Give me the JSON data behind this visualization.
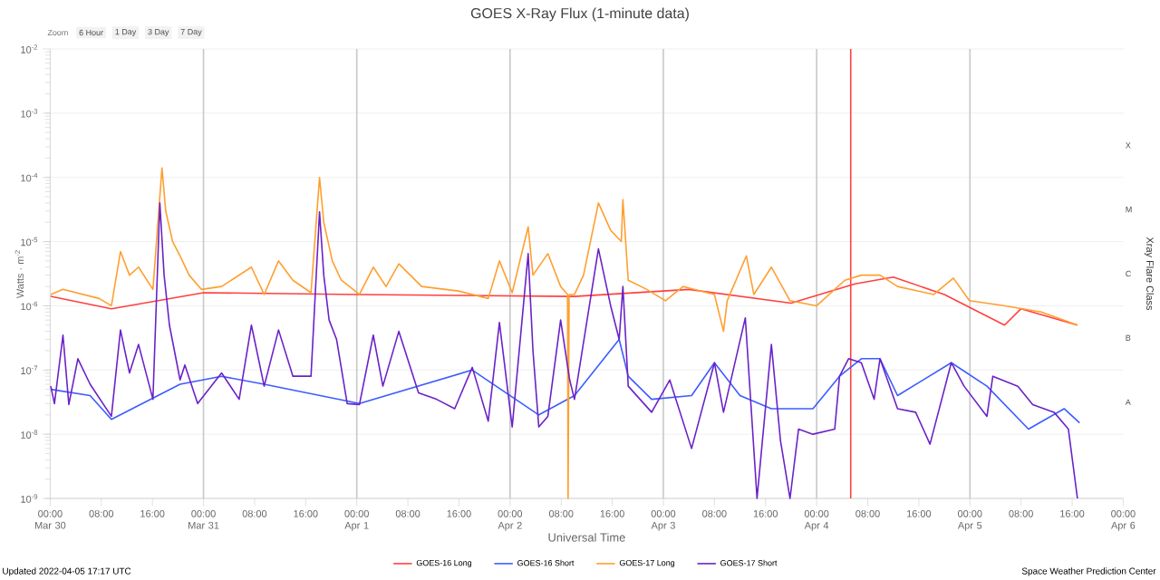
{
  "chart_data": {
    "type": "line",
    "title": "GOES X-Ray Flux (1-minute data)",
    "xlabel": "Universal Time",
    "ylabel": "Watts · m$^{-2}$",
    "y2label": "Xray Flare Class",
    "annotations": [
      "A",
      "B",
      "C",
      "M",
      "X",
      "Zoom",
      "6 Hour",
      "1 Day",
      "3 Day",
      "7 Day",
      "Updated 2022-04-05 17:17 UTC",
      "Space Weather Prediction Center"
    ],
    "log": "y",
    "grid": "y",
    "legend": "bottom",
    "marker": "none",
    "line_style": "solid",
    "xlim": [
      "2022-03-30T00:00",
      "2022-04-06T00:00"
    ],
    "xticks": [
      {
        "value": "2022-03-30T00:00",
        "label": "00:00 Mar 30"
      },
      {
        "value": "2022-03-30T08:00",
        "label": "08:00"
      },
      {
        "value": "2022-03-30T16:00",
        "label": "16:00"
      },
      {
        "value": "2022-03-31T00:00",
        "label": "00:00 Mar 31"
      },
      {
        "value": "2022-03-31T08:00",
        "label": "08:00"
      },
      {
        "value": "2022-03-31T16:00",
        "label": "16:00"
      },
      {
        "value": "2022-04-01T00:00",
        "label": "00:00 Apr 1"
      },
      {
        "value": "2022-04-01T08:00",
        "label": "08:00"
      },
      {
        "value": "2022-04-01T16:00",
        "label": "16:00"
      },
      {
        "value": "2022-04-02T00:00",
        "label": "00:00 Apr 2"
      },
      {
        "value": "2022-04-02T08:00",
        "label": "08:00"
      },
      {
        "value": "2022-04-02T16:00",
        "label": "16:00"
      },
      {
        "value": "2022-04-03T00:00",
        "label": "00:00 Apr 3"
      },
      {
        "value": "2022-04-03T08:00",
        "label": "08:00"
      },
      {
        "value": "2022-04-03T16:00",
        "label": "16:00"
      },
      {
        "value": "2022-04-04T00:00",
        "label": "00:00 Apr 4"
      },
      {
        "value": "2022-04-04T08:00",
        "label": "08:00"
      },
      {
        "value": "2022-04-04T16:00",
        "label": "16:00"
      },
      {
        "value": "2022-04-05T00:00",
        "label": "00:00 Apr 5"
      },
      {
        "value": "2022-04-05T08:00",
        "label": "08:00"
      },
      {
        "value": "2022-04-05T16:00",
        "label": "16:00"
      },
      {
        "value": "2022-04-06T00:00",
        "label": "00:00 Apr 6"
      }
    ],
    "ylim": [
      1e-09,
      0.01
    ],
    "yticks": [
      {
        "value": 1e-09,
        "label": "10$^{-9}$"
      },
      {
        "value": 1e-08,
        "label": "10$^{-8}$"
      },
      {
        "value": 1e-07,
        "label": "10$^{-7}$"
      },
      {
        "value": 1e-06,
        "label": "10$^{-6}$"
      },
      {
        "value": 1e-05,
        "label": "10$^{-5}$"
      },
      {
        "value": 0.0001,
        "label": "10$^{-4}$"
      },
      {
        "value": 0.001,
        "label": "10$^{-3}$"
      },
      {
        "value": 0.01,
        "label": "10$^{-2}$"
      }
    ],
    "ref_lines": [
      {
        "axis": "x",
        "value": "2022-03-31T00:00",
        "color": "#c8c8c8"
      },
      {
        "axis": "x",
        "value": "2022-04-01T00:00",
        "color": "#c8c8c8"
      },
      {
        "axis": "x",
        "value": "2022-04-02T00:00",
        "color": "#c8c8c8"
      },
      {
        "axis": "x",
        "value": "2022-04-03T00:00",
        "color": "#c8c8c8"
      },
      {
        "axis": "x",
        "value": "2022-04-04T00:00",
        "color": "#c8c8c8"
      },
      {
        "axis": "x",
        "value": "2022-04-05T00:00",
        "color": "#c8c8c8"
      },
      {
        "axis": "x",
        "value": "2022-04-04T05:20",
        "color": "#ff4040"
      }
    ],
    "series": [
      {
        "name": "GOES-16 Long",
        "color": "#ff4040",
        "x": [
          "2022-03-30T00:05",
          "2022-03-30T09:35",
          "2022-03-31T00:00",
          "2022-04-01T00:00",
          "2022-04-02T10:00",
          "2022-04-03T04:00",
          "2022-04-03T20:00",
          "2022-04-04T06:00",
          "2022-04-04T12:00",
          "2022-04-04T20:00",
          "2022-04-05T05:25",
          "2022-04-05T08:00",
          "2022-04-05T16:50"
        ],
        "values": [
          1.4e-06,
          9e-07,
          1.6e-06,
          1.5e-06,
          1.4e-06,
          1.8e-06,
          1.1e-06,
          2.2e-06,
          2.8e-06,
          1.5e-06,
          5e-07,
          9e-07,
          5e-07
        ]
      },
      {
        "name": "GOES-16 Short",
        "color": "#3c5cff",
        "x": [
          "2022-03-30T00:05",
          "2022-03-30T06:15",
          "2022-03-30T09:35",
          "2022-03-30T20:20",
          "2022-03-31T02:50",
          "2022-03-31T09:30",
          "2022-04-01T00:25",
          "2022-04-01T18:05",
          "2022-04-02T04:30",
          "2022-04-02T10:05",
          "2022-04-02T17:05",
          "2022-04-02T18:30",
          "2022-04-02T22:10",
          "2022-04-03T04:25",
          "2022-04-03T08:00",
          "2022-04-03T12:00",
          "2022-04-03T16:55",
          "2022-04-03T23:25",
          "2022-04-04T03:35",
          "2022-04-04T07:00",
          "2022-04-04T09:55",
          "2022-04-04T12:40",
          "2022-04-04T21:05",
          "2022-04-05T02:40",
          "2022-04-05T09:10",
          "2022-04-05T14:45",
          "2022-04-05T17:10"
        ],
        "values": [
          5e-08,
          4e-08,
          1.7e-08,
          6e-08,
          8e-08,
          6e-08,
          3e-08,
          1e-07,
          2e-08,
          4e-08,
          3e-07,
          8e-08,
          3.5e-08,
          4e-08,
          1.3e-07,
          4e-08,
          2.5e-08,
          2.5e-08,
          8e-08,
          1.5e-07,
          1.5e-07,
          4e-08,
          1.3e-07,
          5.6e-08,
          1.2e-08,
          2.5e-08,
          1.5e-08
        ]
      },
      {
        "name": "GOES-17 Long",
        "color": "#ff9f2f",
        "x": [
          "2022-03-30T00:05",
          "2022-03-30T02:00",
          "2022-03-30T07:40",
          "2022-03-30T09:35",
          "2022-03-30T11:00",
          "2022-03-30T12:25",
          "2022-03-30T13:50",
          "2022-03-30T16:05",
          "2022-03-30T17:30",
          "2022-03-30T18:05",
          "2022-03-30T19:10",
          "2022-03-30T20:20",
          "2022-03-30T21:45",
          "2022-03-30T23:40",
          "2022-03-31T02:50",
          "2022-03-31T07:30",
          "2022-03-31T09:30",
          "2022-03-31T11:45",
          "2022-03-31T14:00",
          "2022-03-31T16:50",
          "2022-03-31T18:10",
          "2022-03-31T18:50",
          "2022-03-31T20:10",
          "2022-03-31T21:35",
          "2022-04-01T00:25",
          "2022-04-01T02:35",
          "2022-04-01T04:35",
          "2022-04-01T06:35",
          "2022-04-01T10:10",
          "2022-04-01T15:55",
          "2022-04-01T20:35",
          "2022-04-01T22:20",
          "2022-04-02T00:20",
          "2022-04-02T02:50",
          "2022-04-02T03:35",
          "2022-04-02T05:55",
          "2022-04-02T07:55",
          "2022-04-02T09:00",
          "2022-04-02T09:05",
          "2022-04-02T09:15",
          "2022-04-02T10:05",
          "2022-04-02T11:30",
          "2022-04-02T13:50",
          "2022-04-02T15:45",
          "2022-04-02T17:25",
          "2022-04-02T17:40",
          "2022-04-02T18:30",
          "2022-04-02T21:25",
          "2022-04-03T00:20",
          "2022-04-03T03:05",
          "2022-04-03T08:00",
          "2022-04-03T09:25",
          "2022-04-03T10:00",
          "2022-04-03T13:00",
          "2022-04-03T14:10",
          "2022-04-03T16:55",
          "2022-04-03T19:50",
          "2022-04-04T00:00",
          "2022-04-04T04:25",
          "2022-04-04T07:00",
          "2022-04-04T09:55",
          "2022-04-04T12:40",
          "2022-04-04T18:20",
          "2022-04-04T21:25",
          "2022-04-04T23:55",
          "2022-04-05T05:30",
          "2022-04-05T11:10",
          "2022-04-05T16:50"
        ],
        "values": [
          1.5e-06,
          1.8e-06,
          1.3e-06,
          1e-06,
          7e-06,
          3e-06,
          4e-06,
          1.8e-06,
          0.00014,
          3e-05,
          1e-05,
          6e-06,
          3e-06,
          1.8e-06,
          2e-06,
          4e-06,
          1.5e-06,
          5e-06,
          2.5e-06,
          1.6e-06,
          0.0001,
          2e-05,
          5e-06,
          2.5e-06,
          1.5e-06,
          4e-06,
          2e-06,
          4.5e-06,
          2e-06,
          1.7e-06,
          1.3e-06,
          5e-06,
          1.6e-06,
          1.7e-05,
          3e-06,
          6.5e-06,
          2e-06,
          1.5e-06,
          1e-09,
          1.5e-06,
          1.5e-06,
          3e-06,
          4e-05,
          1.5e-05,
          1e-05,
          4.5e-05,
          2.5e-06,
          1.8e-06,
          1.2e-06,
          2e-06,
          1.5e-06,
          4e-07,
          1.2e-06,
          6e-06,
          1.5e-06,
          4e-06,
          1.2e-06,
          1e-06,
          2.5e-06,
          3e-06,
          3e-06,
          2e-06,
          1.5e-06,
          2.7e-06,
          1.2e-06,
          1e-06,
          8e-07,
          5e-07
        ]
      },
      {
        "name": "GOES-17 Short",
        "color": "#6b22c8",
        "x": [
          "2022-03-30T00:05",
          "2022-03-30T00:40",
          "2022-03-30T02:00",
          "2022-03-30T02:55",
          "2022-03-30T04:20",
          "2022-03-30T06:15",
          "2022-03-30T09:35",
          "2022-03-30T11:00",
          "2022-03-30T12:25",
          "2022-03-30T13:50",
          "2022-03-30T16:05",
          "2022-03-30T17:10",
          "2022-03-30T17:50",
          "2022-03-30T18:40",
          "2022-03-30T20:20",
          "2022-03-30T21:05",
          "2022-03-30T23:05",
          "2022-03-31T02:50",
          "2022-03-31T05:35",
          "2022-03-31T07:30",
          "2022-03-31T09:30",
          "2022-03-31T11:45",
          "2022-03-31T14:00",
          "2022-03-31T16:50",
          "2022-03-31T18:10",
          "2022-03-31T18:50",
          "2022-03-31T19:40",
          "2022-03-31T20:50",
          "2022-03-31T22:30",
          "2022-04-01T00:25",
          "2022-04-01T02:35",
          "2022-04-01T04:05",
          "2022-04-01T06:35",
          "2022-04-01T09:40",
          "2022-04-01T12:30",
          "2022-04-01T15:20",
          "2022-04-01T18:05",
          "2022-04-01T20:35",
          "2022-04-01T22:20",
          "2022-04-02T00:20",
          "2022-04-02T02:50",
          "2022-04-02T03:35",
          "2022-04-02T04:30",
          "2022-04-02T05:55",
          "2022-04-02T07:55",
          "2022-04-02T09:20",
          "2022-04-02T10:05",
          "2022-04-02T13:50",
          "2022-04-02T15:45",
          "2022-04-02T17:05",
          "2022-04-02T17:40",
          "2022-04-02T18:30",
          "2022-04-02T22:10",
          "2022-04-03T01:00",
          "2022-04-03T04:25",
          "2022-04-03T08:00",
          "2022-04-03T09:25",
          "2022-04-03T12:50",
          "2022-04-03T14:40",
          "2022-04-03T16:55",
          "2022-04-03T18:20",
          "2022-04-03T19:50",
          "2022-04-03T21:10",
          "2022-04-03T23:25",
          "2022-04-04T02:50",
          "2022-04-04T03:35",
          "2022-04-04T05:00",
          "2022-04-04T07:00",
          "2022-04-04T09:00",
          "2022-04-04T09:55",
          "2022-04-04T12:40",
          "2022-04-04T15:30",
          "2022-04-04T17:45",
          "2022-04-04T21:05",
          "2022-04-04T23:05",
          "2022-04-05T02:40",
          "2022-04-05T03:35",
          "2022-04-05T07:30",
          "2022-04-05T09:50",
          "2022-04-05T13:10",
          "2022-04-05T15:25",
          "2022-04-05T16:50"
        ],
        "values": [
          5.6e-08,
          3e-08,
          3.5e-07,
          2.9e-08,
          1.5e-07,
          6e-08,
          1.9e-08,
          4.2e-07,
          9e-08,
          2.5e-07,
          3.5e-08,
          4e-05,
          3e-06,
          5e-07,
          7e-08,
          1.2e-07,
          3e-08,
          9e-08,
          3.5e-08,
          5e-07,
          5.6e-08,
          4.2e-07,
          8e-08,
          8e-08,
          2.9e-05,
          3e-06,
          6e-07,
          3e-07,
          3e-08,
          2.9e-08,
          3.5e-07,
          5.6e-08,
          4e-07,
          4.4e-08,
          3.5e-08,
          2.5e-08,
          1.1e-07,
          1.6e-08,
          5.5e-07,
          1.3e-08,
          6.5e-06,
          2e-07,
          1.3e-08,
          1.9e-08,
          6e-07,
          7e-08,
          3.5e-08,
          7.7e-06,
          1e-06,
          3e-07,
          2e-06,
          5.6e-08,
          2.2e-08,
          7e-08,
          6e-09,
          1.3e-07,
          2.2e-08,
          6.5e-07,
          1e-09,
          2.5e-07,
          8e-09,
          1e-09,
          1.2e-08,
          1e-08,
          1.2e-08,
          8e-08,
          1.5e-07,
          1.3e-07,
          3.5e-08,
          1.5e-07,
          2.5e-08,
          2.2e-08,
          7e-09,
          1.3e-07,
          5.6e-08,
          1.9e-08,
          8e-08,
          5.6e-08,
          2.9e-08,
          2.2e-08,
          1.2e-08,
          1e-09
        ]
      }
    ]
  }
}
